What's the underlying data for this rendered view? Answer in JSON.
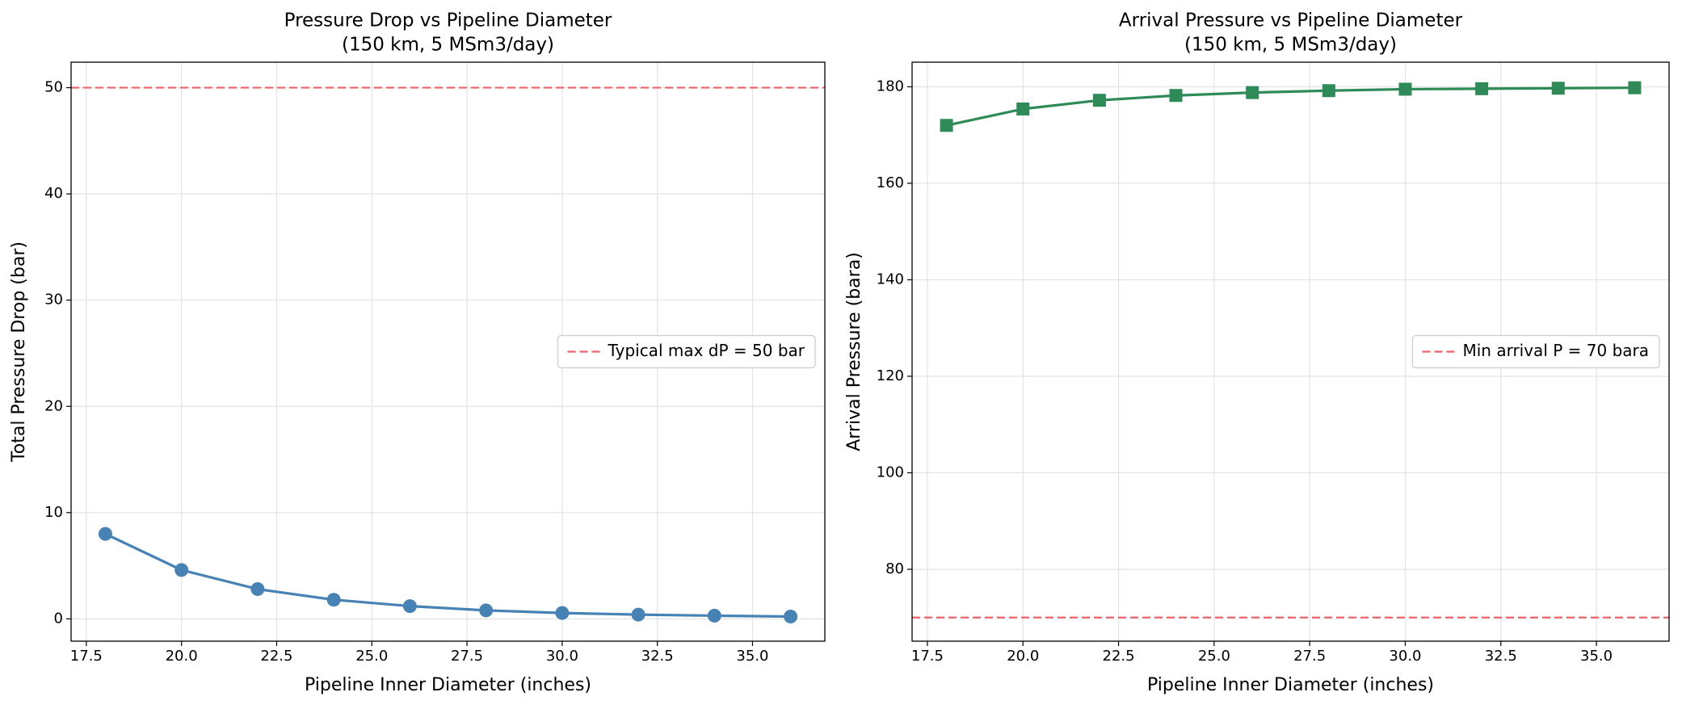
{
  "chart_data": [
    {
      "type": "line",
      "title": "Pressure Drop vs Pipeline Diameter",
      "subtitle": "(150 km, 5 MSm3/day)",
      "x_label": "Pipeline Inner Diameter (inches)",
      "y_label": "Total Pressure Drop (bar)",
      "x": [
        18,
        20,
        22,
        24,
        26,
        28,
        30,
        32,
        34,
        36
      ],
      "series": [
        {
          "color": "#4682b4",
          "marker": "circle",
          "values": [
            8.0,
            4.6,
            2.8,
            1.8,
            1.2,
            0.8,
            0.55,
            0.4,
            0.3,
            0.22
          ]
        }
      ],
      "reference_line": {
        "value": 50,
        "label": "Typical max dP = 50 bar",
        "color": "#f0606a"
      },
      "xlim": [
        17.1,
        36.9
      ],
      "ylim": [
        -2.1,
        52.4
      ],
      "xticks": [
        17.5,
        {
          "value": 20,
          "label": "20.0"
        },
        22.5,
        {
          "value": 25,
          "label": "25.0"
        },
        27.5,
        {
          "value": 30,
          "label": "30.0"
        },
        32.5,
        {
          "value": 35,
          "label": "35.0"
        }
      ],
      "yticks": [
        0,
        10,
        20,
        30,
        40,
        50
      ],
      "grid": true,
      "legend": "center right"
    },
    {
      "type": "line",
      "title": "Arrival Pressure vs Pipeline Diameter",
      "subtitle": "(150 km, 5 MSm3/day)",
      "x_label": "Pipeline Inner Diameter (inches)",
      "y_label": "Arrival Pressure (bara)",
      "x": [
        18,
        20,
        22,
        24,
        26,
        28,
        30,
        32,
        34,
        36
      ],
      "series": [
        {
          "color": "#2e8b57",
          "marker": "square",
          "values": [
            172.0,
            175.4,
            177.2,
            178.2,
            178.8,
            179.2,
            179.5,
            179.6,
            179.7,
            179.8
          ]
        }
      ],
      "reference_line": {
        "value": 70,
        "label": "Min arrival P = 70 bara",
        "color": "#f0606a"
      },
      "xlim": [
        17.1,
        36.9
      ],
      "ylim": [
        65.1,
        185.1
      ],
      "xticks": [
        17.5,
        {
          "value": 20,
          "label": "20.0"
        },
        22.5,
        {
          "value": 25,
          "label": "25.0"
        },
        27.5,
        {
          "value": 30,
          "label": "30.0"
        },
        32.5,
        {
          "value": 35,
          "label": "35.0"
        }
      ],
      "yticks": [
        80,
        100,
        120,
        140,
        160,
        180
      ],
      "grid": true,
      "legend": "center right"
    }
  ]
}
